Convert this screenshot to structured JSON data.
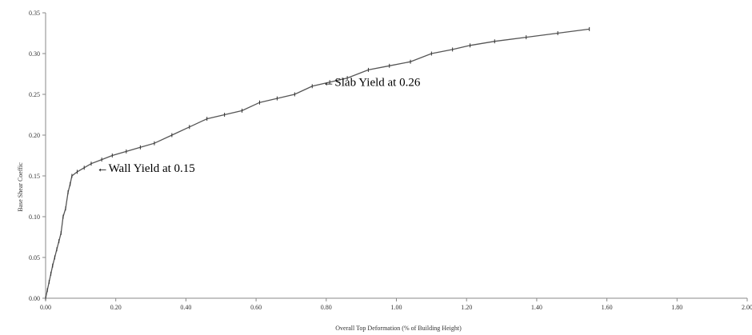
{
  "chart_data": {
    "type": "line",
    "xlabel": "Overall Top Deformation (% of Building Height)",
    "ylabel": "Base Shear Coeffic",
    "xlim": [
      0,
      2.0
    ],
    "ylim": [
      0,
      0.35
    ],
    "x_ticks": [
      "0.00",
      "0.20",
      "0.40",
      "0.60",
      "0.80",
      "1.00",
      "1.20",
      "1.40",
      "1.60",
      "1.80",
      "2.00"
    ],
    "y_ticks": [
      "0.00",
      "0.05",
      "0.10",
      "0.15",
      "0.20",
      "0.25",
      "0.30",
      "0.35"
    ],
    "grid": false,
    "line_color": "#555555",
    "series": [
      {
        "x": [
          0,
          0.005,
          0.01,
          0.015,
          0.02,
          0.026,
          0.032,
          0.038,
          0.044,
          0.05,
          0.057,
          0.064,
          0.07,
          0.075,
          0.09,
          0.11,
          0.13,
          0.16,
          0.19,
          0.23,
          0.27,
          0.31,
          0.36,
          0.41,
          0.46,
          0.51,
          0.56,
          0.61,
          0.66,
          0.71,
          0.76,
          0.81,
          0.86,
          0.92,
          0.98,
          1.04,
          1.1,
          1.16,
          1.21,
          1.28,
          1.37,
          1.46,
          1.55
        ],
        "y": [
          0,
          0.01,
          0.02,
          0.03,
          0.04,
          0.05,
          0.06,
          0.07,
          0.08,
          0.1,
          0.11,
          0.13,
          0.14,
          0.15,
          0.155,
          0.16,
          0.165,
          0.17,
          0.175,
          0.18,
          0.185,
          0.19,
          0.2,
          0.21,
          0.22,
          0.225,
          0.23,
          0.24,
          0.245,
          0.25,
          0.26,
          0.265,
          0.27,
          0.28,
          0.285,
          0.29,
          0.3,
          0.305,
          0.31,
          0.315,
          0.32,
          0.325,
          0.33
        ]
      }
    ],
    "annotations": [
      {
        "text": "←Wall Yield at 0.15",
        "x": 0.145,
        "y": 0.16
      },
      {
        "text": "←Slab Yield at 0.26",
        "x": 0.79,
        "y": 0.265
      }
    ]
  }
}
